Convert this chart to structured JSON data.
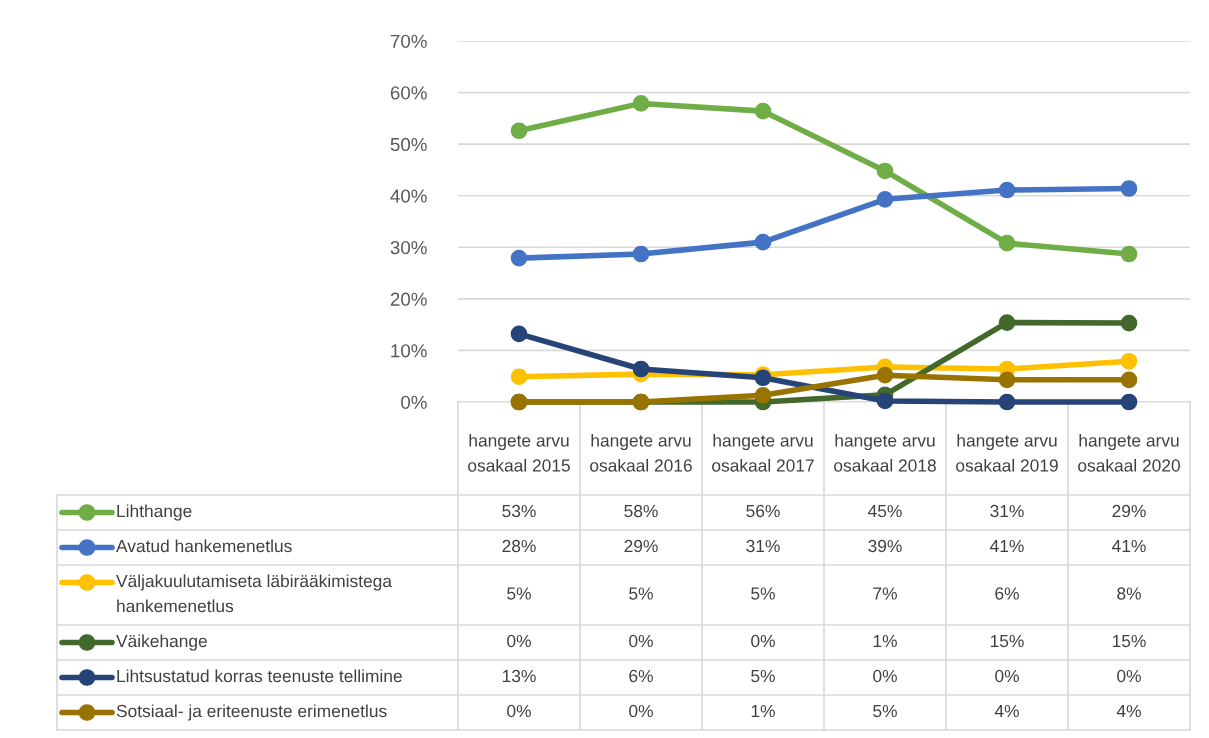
{
  "chart_data": {
    "type": "line",
    "categories": [
      "hangete arvu osakaal 2015",
      "hangete arvu osakaal 2016",
      "hangete arvu osakaal 2017",
      "hangete arvu osakaal 2018",
      "hangete arvu osakaal 2019",
      "hangete arvu osakaal 2020"
    ],
    "series": [
      {
        "name": "Lihthange",
        "color": "#70ad47",
        "values": [
          52.6,
          57.9,
          56.4,
          44.8,
          30.8,
          28.7
        ],
        "value_labels": [
          "53%",
          "58%",
          "56%",
          "45%",
          "31%",
          "29%"
        ]
      },
      {
        "name": "Avatud hankemenetlus",
        "color": "#4472c4",
        "values": [
          27.9,
          28.7,
          31.0,
          39.3,
          41.1,
          41.4
        ],
        "value_labels": [
          "28%",
          "29%",
          "31%",
          "39%",
          "41%",
          "41%"
        ]
      },
      {
        "name": "Väljakuulutamiseta läbirääkimistega hankemenetlus",
        "color": "#ffc000",
        "values": [
          4.9,
          5.4,
          5.3,
          6.8,
          6.4,
          7.9
        ],
        "value_labels": [
          "5%",
          "5%",
          "5%",
          "7%",
          "6%",
          "8%"
        ]
      },
      {
        "name": "Väikehange",
        "color": "#43682b",
        "values": [
          0,
          0,
          0,
          1.4,
          15.4,
          15.3
        ],
        "value_labels": [
          "0%",
          "0%",
          "0%",
          "1%",
          "15%",
          "15%"
        ]
      },
      {
        "name": "Lihtsustatud korras teenuste tellimine",
        "color": "#264478",
        "values": [
          13.2,
          6.4,
          4.7,
          0.2,
          0,
          0
        ],
        "value_labels": [
          "13%",
          "6%",
          "5%",
          "0%",
          "0%",
          "0%"
        ]
      },
      {
        "name": "Sotsiaal- ja eriteenuste erimenetlus",
        "color": "#997300",
        "values": [
          0,
          0,
          1.3,
          5.2,
          4.3,
          4.3
        ],
        "value_labels": [
          "0%",
          "0%",
          "1%",
          "5%",
          "4%",
          "4%"
        ]
      }
    ],
    "ylim": [
      0,
      70
    ],
    "yticks": [
      {
        "value": 0,
        "label": "0%"
      },
      {
        "value": 10,
        "label": "10%"
      },
      {
        "value": 20,
        "label": "20%"
      },
      {
        "value": 30,
        "label": "30%"
      },
      {
        "value": 40,
        "label": "40%"
      },
      {
        "value": 50,
        "label": "50%"
      },
      {
        "value": 60,
        "label": "60%"
      },
      {
        "value": 70,
        "label": "70%"
      }
    ],
    "grid": "y",
    "legend": "bottom",
    "marker": "circle",
    "line_style": "solid"
  }
}
